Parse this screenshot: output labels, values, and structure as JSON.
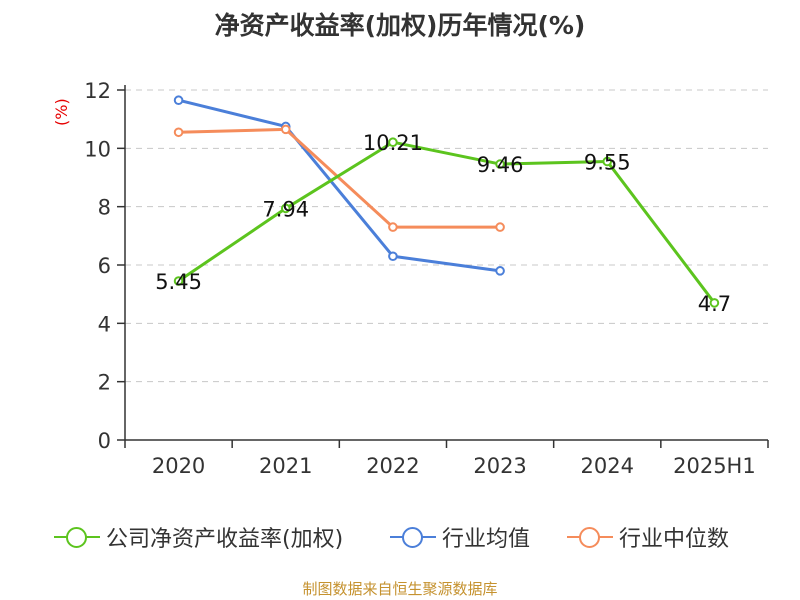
{
  "title": "净资产收益率(加权)历年情况(%)",
  "unit_label": "(%)",
  "source": "制图数据来自恒生聚源数据库",
  "colors": {
    "company": "#5cc41e",
    "industry_avg": "#4b7fd9",
    "industry_median": "#f58c5b",
    "axis": "#333333",
    "grid": "#c8c8c8",
    "unit": "#e60000",
    "source": "#c5922f"
  },
  "chart_data": {
    "type": "line",
    "title": "净资产收益率(加权)历年情况(%)",
    "ylabel": "(%)",
    "ylim": [
      0,
      12
    ],
    "yticks": [
      0,
      2,
      4,
      6,
      8,
      10,
      12
    ],
    "grid": true,
    "legend_position": "bottom",
    "categories": [
      "2020",
      "2021",
      "2022",
      "2023",
      "2024",
      "2025H1"
    ],
    "series": [
      {
        "name": "公司净资产收益率(加权)",
        "color": "#5cc41e",
        "values": [
          5.45,
          7.94,
          10.21,
          9.46,
          9.55,
          4.7
        ],
        "labels": [
          "5.45",
          "7.94",
          "10.21",
          "9.46",
          "9.55",
          "4.7"
        ]
      },
      {
        "name": "行业均值",
        "color": "#4b7fd9",
        "values": [
          11.65,
          10.75,
          6.3,
          5.8,
          null,
          null
        ]
      },
      {
        "name": "行业中位数",
        "color": "#f58c5b",
        "values": [
          10.55,
          10.65,
          7.3,
          7.3,
          null,
          null
        ]
      }
    ]
  }
}
